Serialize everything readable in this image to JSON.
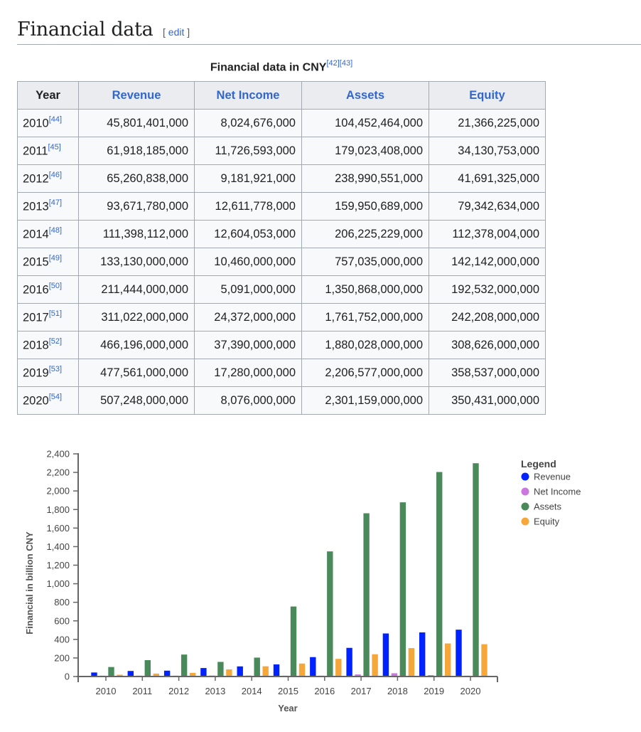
{
  "section": {
    "title": "Financial data",
    "edit_open": "[",
    "edit_label": "edit",
    "edit_close": "]"
  },
  "table": {
    "caption": "Financial data in CNY",
    "caption_refs": [
      "[42]",
      "[43]"
    ],
    "headers": [
      "Year",
      "Revenue",
      "Net Income",
      "Assets",
      "Equity"
    ],
    "rows": [
      {
        "year": "2010",
        "ref": "[44]",
        "revenue": "45,801,401,000",
        "net_income": "8,024,676,000",
        "assets": "104,452,464,000",
        "equity": "21,366,225,000"
      },
      {
        "year": "2011",
        "ref": "[45]",
        "revenue": "61,918,185,000",
        "net_income": "11,726,593,000",
        "assets": "179,023,408,000",
        "equity": "34,130,753,000"
      },
      {
        "year": "2012",
        "ref": "[46]",
        "revenue": "65,260,838,000",
        "net_income": "9,181,921,000",
        "assets": "238,990,551,000",
        "equity": "41,691,325,000"
      },
      {
        "year": "2013",
        "ref": "[47]",
        "revenue": "93,671,780,000",
        "net_income": "12,611,778,000",
        "assets": "159,950,689,000",
        "equity": "79,342,634,000"
      },
      {
        "year": "2014",
        "ref": "[48]",
        "revenue": "111,398,112,000",
        "net_income": "12,604,053,000",
        "assets": "206,225,229,000",
        "equity": "112,378,004,000"
      },
      {
        "year": "2015",
        "ref": "[49]",
        "revenue": "133,130,000,000",
        "net_income": "10,460,000,000",
        "assets": "757,035,000,000",
        "equity": "142,142,000,000"
      },
      {
        "year": "2016",
        "ref": "[50]",
        "revenue": "211,444,000,000",
        "net_income": "5,091,000,000",
        "assets": "1,350,868,000,000",
        "equity": "192,532,000,000"
      },
      {
        "year": "2017",
        "ref": "[51]",
        "revenue": "311,022,000,000",
        "net_income": "24,372,000,000",
        "assets": "1,761,752,000,000",
        "equity": "242,208,000,000"
      },
      {
        "year": "2018",
        "ref": "[52]",
        "revenue": "466,196,000,000",
        "net_income": "37,390,000,000",
        "assets": "1,880,028,000,000",
        "equity": "308,626,000,000"
      },
      {
        "year": "2019",
        "ref": "[53]",
        "revenue": "477,561,000,000",
        "net_income": "17,280,000,000",
        "assets": "2,206,577,000,000",
        "equity": "358,537,000,000"
      },
      {
        "year": "2020",
        "ref": "[54]",
        "revenue": "507,248,000,000",
        "net_income": "8,076,000,000",
        "assets": "2,301,159,000,000",
        "equity": "350,431,000,000"
      }
    ]
  },
  "chart_data": {
    "type": "bar",
    "title": "",
    "xlabel": "Year",
    "ylabel": "Financial in billion CNY",
    "ylim": [
      0,
      2400
    ],
    "yticks": [
      0,
      200,
      400,
      600,
      800,
      1000,
      1200,
      1400,
      1600,
      1800,
      2000,
      2200,
      2400
    ],
    "ytick_labels": [
      "0",
      "200",
      "400",
      "600",
      "800",
      "1,000",
      "1,200",
      "1,400",
      "1,600",
      "1,800",
      "2,000",
      "2,200",
      "2,400"
    ],
    "grid": false,
    "legend_title": "Legend",
    "legend_position": "top-right",
    "categories": [
      "2010",
      "2011",
      "2012",
      "2013",
      "2014",
      "2015",
      "2016",
      "2017",
      "2018",
      "2019",
      "2020"
    ],
    "series": [
      {
        "name": "Revenue",
        "color": "#0022ff",
        "values": [
          45.8,
          61.9,
          65.3,
          93.7,
          111.4,
          133.1,
          211.4,
          311.0,
          466.2,
          477.6,
          507.2
        ]
      },
      {
        "name": "Net Income",
        "color": "#cc77dd",
        "values": [
          8.0,
          11.7,
          9.2,
          12.6,
          12.6,
          10.5,
          5.1,
          24.4,
          37.4,
          17.3,
          8.1
        ]
      },
      {
        "name": "Assets",
        "color": "#4a8a5a",
        "values": [
          104.5,
          179.0,
          239.0,
          160.0,
          206.2,
          757.0,
          1350.9,
          1761.8,
          1880.0,
          2206.6,
          2301.2
        ]
      },
      {
        "name": "Equity",
        "color": "#f5a73a",
        "values": [
          21.4,
          34.1,
          41.7,
          79.3,
          112.4,
          142.1,
          192.5,
          242.2,
          308.6,
          358.5,
          350.4
        ]
      }
    ]
  }
}
